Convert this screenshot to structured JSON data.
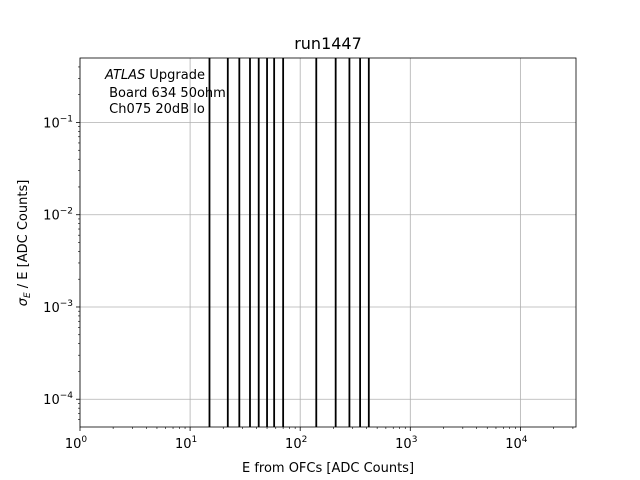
{
  "chart_data": {
    "type": "scatter",
    "title": "run1447",
    "xlabel": "E from OFCs [ADC Counts]",
    "ylabel_parts": {
      "sym": "σ",
      "sub": "E",
      "rest": " / E [ADC Counts]"
    },
    "xscale": "log",
    "yscale": "log",
    "xlim": [
      1,
      32000
    ],
    "ylim": [
      5e-05,
      0.5
    ],
    "grid": true,
    "x_ticks": [
      {
        "value": 1,
        "base": "10",
        "exp": "0"
      },
      {
        "value": 10,
        "base": "10",
        "exp": "1"
      },
      {
        "value": 100,
        "base": "10",
        "exp": "2"
      },
      {
        "value": 1000,
        "base": "10",
        "exp": "3"
      },
      {
        "value": 10000,
        "base": "10",
        "exp": "4"
      }
    ],
    "y_ticks": [
      {
        "value": 0.0001,
        "base": "10",
        "exp": "−4"
      },
      {
        "value": 0.001,
        "base": "10",
        "exp": "−3"
      },
      {
        "value": 0.01,
        "base": "10",
        "exp": "−2"
      },
      {
        "value": 0.1,
        "base": "10",
        "exp": "−1"
      }
    ],
    "annotation": {
      "italic": "ATLAS",
      "line1_rest": " Upgrade",
      "line2": " Board 634 50ohm",
      "line3": " Ch075 20dB lo"
    },
    "vertical_lines_x": [
      15,
      22,
      28,
      35,
      42,
      50,
      58,
      70,
      140,
      210,
      280,
      350,
      420
    ],
    "colors": {
      "lines": "#000000",
      "grid": "#b0b0b0"
    }
  }
}
